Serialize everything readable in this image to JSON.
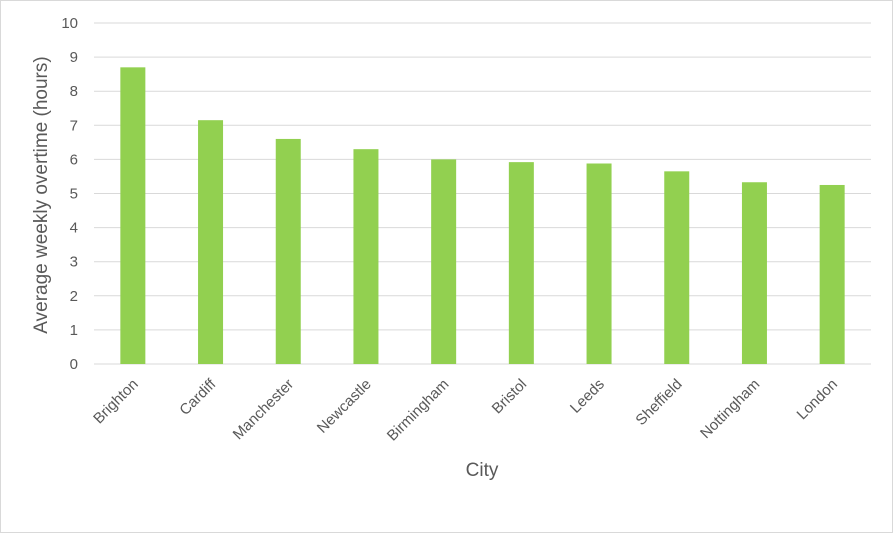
{
  "chart_data": {
    "type": "bar",
    "title": "",
    "xlabel": "City",
    "ylabel": "Average weekly overtime (hours)",
    "categories": [
      "Brighton",
      "Cardiff",
      "Manchester",
      "Newcastle",
      "Birmingham",
      "Bristol",
      "Leeds",
      "Sheffield",
      "Nottingham",
      "London"
    ],
    "values": [
      8.7,
      7.15,
      6.6,
      6.3,
      6.0,
      5.92,
      5.88,
      5.65,
      5.33,
      5.25
    ],
    "ylim": [
      0,
      10
    ],
    "yticks": [
      0,
      1,
      2,
      3,
      4,
      5,
      6,
      7,
      8,
      9,
      10
    ],
    "grid": true,
    "legend": "none",
    "bar_color": "#92d050",
    "grid_color": "#d9d9d9"
  }
}
